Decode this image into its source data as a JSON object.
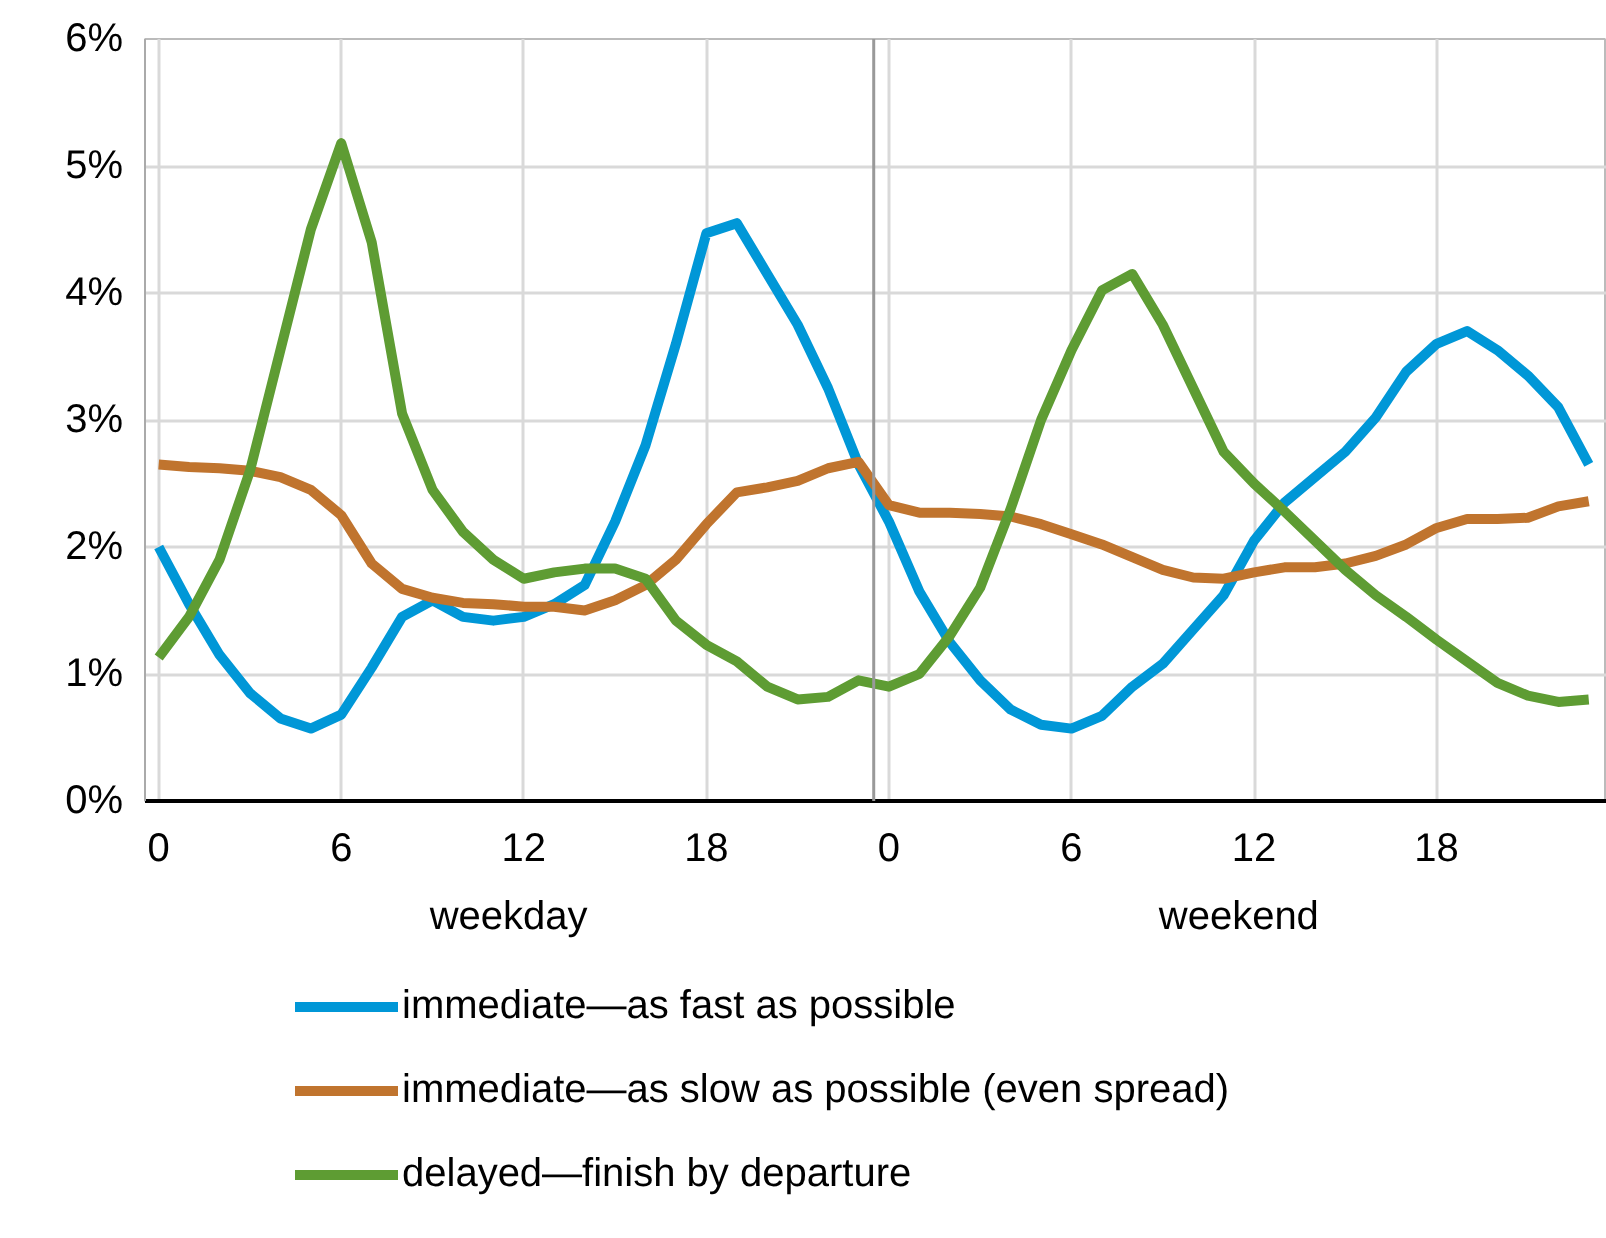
{
  "chart_data": {
    "type": "line",
    "categories": [
      "0",
      null,
      null,
      null,
      null,
      null,
      "6",
      null,
      null,
      null,
      null,
      null,
      "12",
      null,
      null,
      null,
      null,
      null,
      "18",
      null,
      null,
      null,
      null,
      null,
      "0",
      null,
      null,
      null,
      null,
      null,
      "6",
      null,
      null,
      null,
      null,
      null,
      "12",
      null,
      null,
      null,
      null,
      null,
      "18",
      null,
      null,
      null,
      null,
      null
    ],
    "annotations": [
      "weekday",
      "weekend"
    ],
    "ylim": [
      0,
      6
    ],
    "yticks": [
      {
        "value": 0,
        "label": "0%"
      },
      {
        "value": 1,
        "label": "1%"
      },
      {
        "value": 2,
        "label": "2%"
      },
      {
        "value": 3,
        "label": "3%"
      },
      {
        "value": 4,
        "label": "4%"
      },
      {
        "value": 5,
        "label": "5%"
      },
      {
        "value": 6,
        "label": "6%"
      }
    ],
    "grid": true,
    "legend": "bottom",
    "line_style": "solid",
    "marker": "none",
    "series": [
      {
        "name": "immediate—as fast as possible",
        "color": "#0097d7",
        "values": [
          2.0,
          1.55,
          1.15,
          0.85,
          0.65,
          0.57,
          0.68,
          1.05,
          1.45,
          1.58,
          1.45,
          1.42,
          1.45,
          1.55,
          1.7,
          2.2,
          2.8,
          3.6,
          4.47,
          4.55,
          4.15,
          3.75,
          3.25,
          2.65,
          2.2,
          1.65,
          1.25,
          0.95,
          0.72,
          0.6,
          0.57,
          0.67,
          0.9,
          1.08,
          1.35,
          1.62,
          2.05,
          2.35,
          2.55,
          2.75,
          3.02,
          3.38,
          3.6,
          3.7,
          3.55,
          3.35,
          3.1,
          2.65
        ]
      },
      {
        "name": "immediate—as slow as possible (even spread)",
        "color": "#c0742e",
        "values": [
          2.65,
          2.63,
          2.62,
          2.6,
          2.55,
          2.45,
          2.25,
          1.87,
          1.67,
          1.6,
          1.56,
          1.55,
          1.53,
          1.53,
          1.5,
          1.58,
          1.7,
          1.9,
          2.18,
          2.43,
          2.47,
          2.52,
          2.62,
          2.67,
          2.33,
          2.27,
          2.27,
          2.26,
          2.24,
          2.18,
          2.1,
          2.02,
          1.92,
          1.82,
          1.76,
          1.75,
          1.8,
          1.84,
          1.84,
          1.87,
          1.93,
          2.02,
          2.15,
          2.22,
          2.22,
          2.23,
          2.32,
          2.36
        ]
      },
      {
        "name": "delayed—finish by departure",
        "color": "#5e9c33",
        "values": [
          1.13,
          1.45,
          1.9,
          2.6,
          3.55,
          4.5,
          5.18,
          4.4,
          3.05,
          2.45,
          2.12,
          1.9,
          1.75,
          1.8,
          1.83,
          1.83,
          1.75,
          1.42,
          1.23,
          1.1,
          0.9,
          0.8,
          0.82,
          0.95,
          0.9,
          1.0,
          1.3,
          1.68,
          2.3,
          3.0,
          3.55,
          4.02,
          4.15,
          3.75,
          3.25,
          2.75,
          2.5,
          2.28,
          2.05,
          1.82,
          1.62,
          1.45,
          1.27,
          1.1,
          0.93,
          0.83,
          0.78,
          0.8
        ]
      }
    ]
  }
}
